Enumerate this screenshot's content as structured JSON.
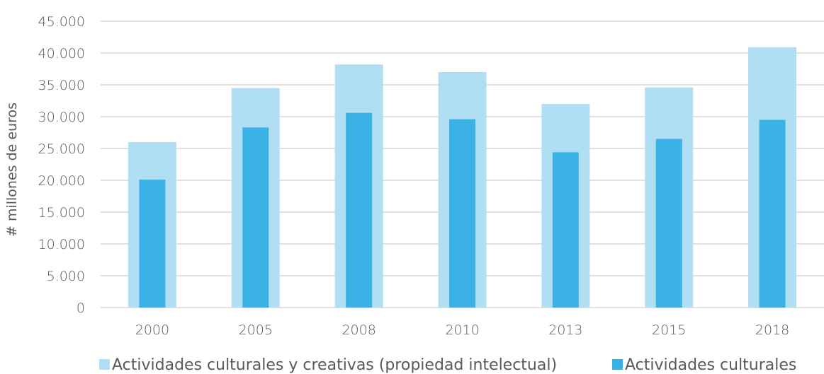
{
  "chart_data": {
    "type": "bar",
    "title": "",
    "xlabel": "",
    "ylabel": "# millones de euros",
    "ylim": [
      0,
      45000
    ],
    "yticks": [
      0,
      5000,
      10000,
      15000,
      20000,
      25000,
      30000,
      35000,
      40000,
      45000
    ],
    "ytick_labels": [
      "0",
      "5.000",
      "10.000",
      "15.000",
      "20.000",
      "25.000",
      "30.000",
      "35.000",
      "40.000",
      "45.000"
    ],
    "categories": [
      "2000",
      "2005",
      "2008",
      "2010",
      "2013",
      "2015",
      "2018"
    ],
    "series": [
      {
        "name": "Actividades culturales y creativas (propiedad intelectual)",
        "color": "#b0dff3",
        "values": [
          26000,
          34500,
          38200,
          37000,
          32000,
          34600,
          40900
        ]
      },
      {
        "name": "Actividades culturales",
        "color": "#3bb2e6",
        "values": [
          20100,
          28300,
          30600,
          29600,
          24400,
          26500,
          29500
        ]
      }
    ],
    "grid": true,
    "legend_position": "bottom",
    "gridline_color": "#d9d9d9"
  }
}
